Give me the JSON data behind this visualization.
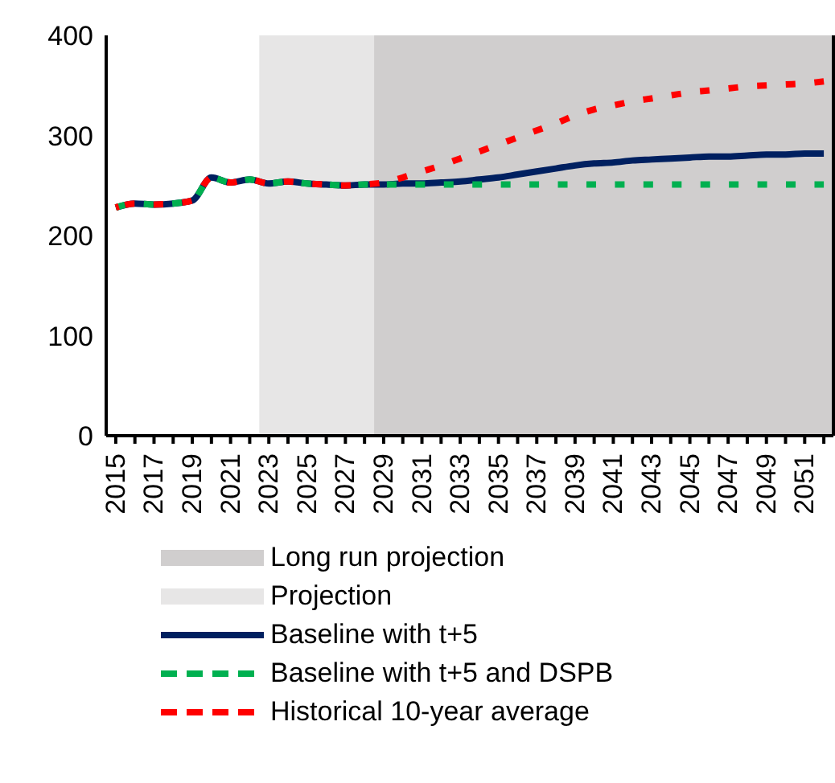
{
  "chart_data": {
    "type": "line",
    "x": [
      2015,
      2016,
      2017,
      2018,
      2019,
      2020,
      2021,
      2022,
      2023,
      2024,
      2025,
      2026,
      2027,
      2028,
      2029,
      2030,
      2031,
      2032,
      2033,
      2034,
      2035,
      2036,
      2037,
      2038,
      2039,
      2040,
      2041,
      2042,
      2043,
      2044,
      2045,
      2046,
      2047,
      2048,
      2049,
      2050,
      2051,
      2052
    ],
    "xlim": [
      2014.5,
      2052.5
    ],
    "xticks": [
      2015,
      {
        "value": 2016,
        "label": null
      },
      2017,
      {
        "value": 2018,
        "label": null
      },
      2019,
      {
        "value": 2020,
        "label": null
      },
      2021,
      {
        "value": 2022,
        "label": null
      },
      2023,
      {
        "value": 2024,
        "label": null
      },
      2025,
      {
        "value": 2026,
        "label": null
      },
      2027,
      {
        "value": 2028,
        "label": null
      },
      2029,
      {
        "value": 2030,
        "label": null
      },
      2031,
      {
        "value": 2032,
        "label": null
      },
      2033,
      {
        "value": 2034,
        "label": null
      },
      2035,
      {
        "value": 2036,
        "label": null
      },
      2037,
      {
        "value": 2038,
        "label": null
      },
      2039,
      {
        "value": 2040,
        "label": null
      },
      2041,
      {
        "value": 2042,
        "label": null
      },
      2043,
      {
        "value": 2044,
        "label": null
      },
      2045,
      {
        "value": 2046,
        "label": null
      },
      2047,
      {
        "value": 2048,
        "label": null
      },
      2049,
      {
        "value": 2050,
        "label": null
      },
      2051,
      {
        "value": 2052,
        "label": null
      }
    ],
    "ylim": [
      0,
      400
    ],
    "yticks": [
      0,
      100,
      200,
      300,
      400
    ],
    "grid": false,
    "legend": "bottom",
    "bands": [
      {
        "axis": "x",
        "from": 2028.5,
        "to": 2052.5,
        "label": "Long run projection",
        "color": "#d0cece"
      },
      {
        "axis": "x",
        "from": 2022.5,
        "to": 2028.5,
        "label": "Projection",
        "color": "#e7e6e6"
      }
    ],
    "series": [
      {
        "name": "Baseline with t+5",
        "color": "#002060",
        "line_style": "solid",
        "values": [
          228,
          232,
          231,
          232,
          235,
          258,
          253,
          256,
          252,
          254,
          252,
          251,
          250,
          251,
          251,
          252,
          252,
          253,
          254,
          256,
          258,
          261,
          264,
          267,
          270,
          272,
          273,
          275,
          276,
          277,
          278,
          279,
          279,
          280,
          281,
          281,
          282,
          282
        ]
      },
      {
        "name": "Baseline with t+5 and DSPB",
        "color": "#00b050",
        "line_style": "dashed",
        "values": [
          228,
          232,
          231,
          232,
          235,
          258,
          253,
          256,
          252,
          254,
          252,
          251,
          250,
          251,
          251,
          251,
          251,
          251,
          251,
          251,
          251,
          251,
          251,
          251,
          251,
          251,
          251,
          251,
          251,
          251,
          251,
          251,
          251,
          251,
          251,
          251,
          251,
          251
        ]
      },
      {
        "name": "Historical 10-year average",
        "color": "#ff0000",
        "line_style": "dashed",
        "values": [
          228,
          232,
          231,
          232,
          235,
          258,
          253,
          256,
          252,
          254,
          252,
          251,
          250,
          251,
          253,
          258,
          264,
          270,
          277,
          284,
          291,
          298,
          305,
          312,
          320,
          326,
          330,
          334,
          337,
          340,
          343,
          345,
          347,
          349,
          350,
          351,
          352,
          354
        ]
      }
    ]
  }
}
